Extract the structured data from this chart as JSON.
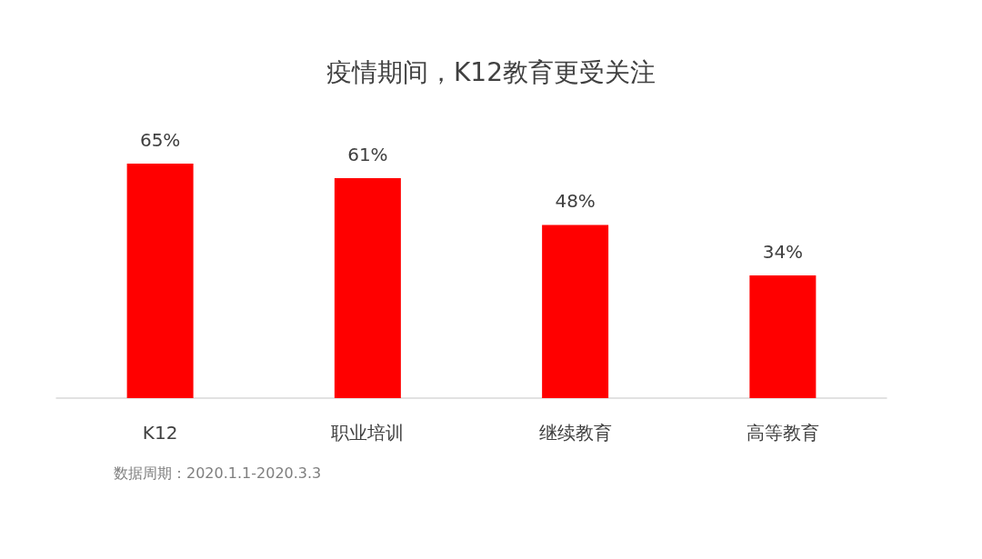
{
  "chart_data": {
    "type": "bar",
    "title": "疫情期间，K12教育更受关注",
    "categories": [
      "K12",
      "职业培训",
      "继续教育",
      "高等教育"
    ],
    "values": [
      65,
      61,
      48,
      34
    ],
    "value_labels": [
      "65%",
      "61%",
      "48%",
      "34%"
    ],
    "color": "#ff0000",
    "annotations": [
      "数据周期：2020.1.1-2020.3.3"
    ]
  }
}
